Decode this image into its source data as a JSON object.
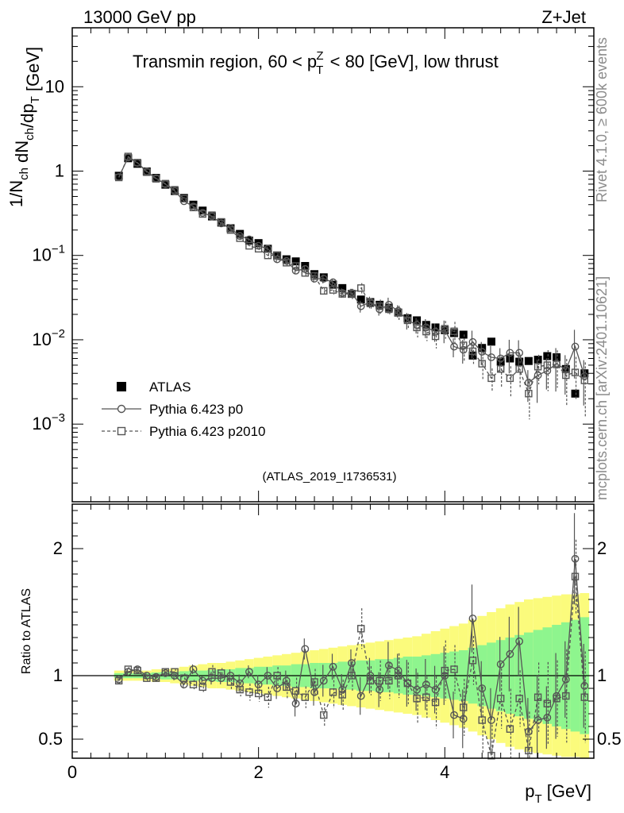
{
  "header": {
    "left": "13000 GeV pp",
    "right": "Z+Jet",
    "side_top": "Rivet 4.1.0, ≥ 600k events",
    "side_bottom": "mcplots.cern.ch [arXiv:2401.10621]",
    "reference": "(ATLAS_2019_I1736531)"
  },
  "colors": {
    "data": "#000000",
    "mc": "#555555",
    "band_inner": "#8ef58e",
    "band_outer": "#fbfb7c",
    "reference_text": "#a0a0a0",
    "side_text": "#8c8c8c"
  },
  "chart_data": [
    {
      "type": "scatter",
      "panel": "main",
      "title": "Transmin region, 60 < p_T^Z < 80 [GeV], low thrust",
      "ylabel": "1/N_ch dN_ch/dp_T [GeV]",
      "yscale": "log",
      "xlim": [
        0,
        5.6
      ],
      "ylim": [
        0.00012,
        50
      ],
      "y_ticks": [
        "10^-3",
        "10^-2",
        "10^-1",
        "1",
        "10"
      ],
      "legend_position": "lower-left",
      "x": [
        0.5,
        0.6,
        0.7,
        0.8,
        0.9,
        1.0,
        1.1,
        1.2,
        1.3,
        1.4,
        1.5,
        1.6,
        1.7,
        1.8,
        1.9,
        2.0,
        2.1,
        2.2,
        2.3,
        2.4,
        2.5,
        2.6,
        2.7,
        2.8,
        2.9,
        3.0,
        3.1,
        3.2,
        3.3,
        3.4,
        3.5,
        3.6,
        3.7,
        3.8,
        3.9,
        4.0,
        4.1,
        4.2,
        4.3,
        4.4,
        4.5,
        4.6,
        4.7,
        4.8,
        4.9,
        5.0,
        5.1,
        5.2,
        5.3,
        5.4,
        5.5
      ],
      "series": [
        {
          "name": "ATLAS",
          "marker": "filled-square",
          "values": [
            0.88,
            1.42,
            1.22,
            0.99,
            0.83,
            0.69,
            0.58,
            0.48,
            0.4,
            0.34,
            0.29,
            0.245,
            0.21,
            0.18,
            0.15,
            0.14,
            0.12,
            0.1,
            0.09,
            0.085,
            0.075,
            0.06,
            0.055,
            0.045,
            0.041,
            0.035,
            0.03,
            0.028,
            0.026,
            0.024,
            0.021,
            0.018,
            0.017,
            0.015,
            0.014,
            0.013,
            0.012,
            0.0115,
            0.0065,
            0.008,
            0.0095,
            0.0055,
            0.006,
            0.0055,
            0.0056,
            0.0058,
            0.0064,
            0.0062,
            0.0045,
            0.0023,
            0.004
          ]
        },
        {
          "name": "Pythia 6.423 p0",
          "marker": "open-circle",
          "line": "solid",
          "values": [
            0.85,
            1.45,
            1.25,
            0.99,
            0.82,
            0.7,
            0.58,
            0.44,
            0.38,
            0.32,
            0.29,
            0.24,
            0.21,
            0.17,
            0.155,
            0.13,
            0.12,
            0.09,
            0.086,
            0.066,
            0.069,
            0.053,
            0.053,
            0.048,
            0.036,
            0.036,
            0.025,
            0.028,
            0.023,
            0.026,
            0.022,
            0.017,
            0.015,
            0.014,
            0.0125,
            0.013,
            0.0083,
            0.0076,
            0.0094,
            0.0072,
            0.0062,
            0.006,
            0.007,
            0.007,
            0.0031,
            0.0038,
            0.0043,
            0.0052,
            0.0044,
            0.0083,
            0.0037
          ]
        },
        {
          "name": "Pythia 6.423 p2010",
          "marker": "open-square",
          "line": "dashed",
          "values": [
            0.84,
            1.49,
            1.26,
            0.97,
            0.81,
            0.71,
            0.6,
            0.47,
            0.37,
            0.31,
            0.3,
            0.25,
            0.2,
            0.16,
            0.13,
            0.12,
            0.1,
            0.1,
            0.082,
            0.075,
            0.062,
            0.057,
            0.038,
            0.039,
            0.035,
            0.035,
            0.041,
            0.027,
            0.025,
            0.023,
            0.021,
            0.017,
            0.014,
            0.0125,
            0.011,
            0.0135,
            0.0126,
            0.0086,
            0.0073,
            0.0052,
            0.0035,
            0.0045,
            0.0035,
            0.0045,
            0.0023,
            0.0048,
            0.005,
            0.0051,
            0.0038,
            0.0041,
            0.0033
          ]
        }
      ]
    },
    {
      "type": "scatter",
      "panel": "ratio",
      "ylabel": "Ratio to ATLAS",
      "xlabel": "p_T [GeV]",
      "xlim": [
        0,
        5.6
      ],
      "ylim": [
        0.35,
        2.35
      ],
      "x_ticks": [
        "0",
        "2",
        "4"
      ],
      "y_ticks": [
        "0.5",
        "1",
        "2"
      ],
      "reference_line": 1,
      "x": [
        0.5,
        0.6,
        0.7,
        0.8,
        0.9,
        1.0,
        1.1,
        1.2,
        1.3,
        1.4,
        1.5,
        1.6,
        1.7,
        1.8,
        1.9,
        2.0,
        2.1,
        2.2,
        2.3,
        2.4,
        2.5,
        2.6,
        2.7,
        2.8,
        2.9,
        3.0,
        3.1,
        3.2,
        3.3,
        3.4,
        3.5,
        3.6,
        3.7,
        3.8,
        3.9,
        4.0,
        4.1,
        4.2,
        4.3,
        4.4,
        4.5,
        4.6,
        4.7,
        4.8,
        4.9,
        5.0,
        5.1,
        5.2,
        5.3,
        5.4,
        5.5
      ],
      "band_inner": [
        0.02,
        0.02,
        0.02,
        0.02,
        0.025,
        0.03,
        0.03,
        0.035,
        0.04,
        0.04,
        0.045,
        0.05,
        0.05,
        0.06,
        0.06,
        0.07,
        0.07,
        0.08,
        0.08,
        0.09,
        0.09,
        0.1,
        0.1,
        0.1,
        0.11,
        0.11,
        0.12,
        0.12,
        0.13,
        0.13,
        0.14,
        0.15,
        0.15,
        0.16,
        0.17,
        0.18,
        0.19,
        0.2,
        0.22,
        0.24,
        0.26,
        0.28,
        0.3,
        0.32,
        0.34,
        0.36,
        0.38,
        0.4,
        0.42,
        0.44,
        0.46
      ],
      "band_outer": [
        0.04,
        0.04,
        0.04,
        0.04,
        0.05,
        0.05,
        0.06,
        0.07,
        0.08,
        0.09,
        0.1,
        0.1,
        0.11,
        0.12,
        0.13,
        0.14,
        0.15,
        0.16,
        0.17,
        0.18,
        0.19,
        0.2,
        0.21,
        0.22,
        0.23,
        0.24,
        0.25,
        0.26,
        0.27,
        0.28,
        0.29,
        0.3,
        0.31,
        0.33,
        0.35,
        0.37,
        0.39,
        0.41,
        0.44,
        0.47,
        0.5,
        0.53,
        0.56,
        0.58,
        0.6,
        0.61,
        0.62,
        0.63,
        0.64,
        0.64,
        0.65
      ],
      "series": [
        {
          "name": "Pythia 6.423 p0",
          "values": [
            0.97,
            1.03,
            1.05,
            1.0,
            0.99,
            1.02,
            1.0,
            0.93,
            1.05,
            0.96,
            0.98,
            0.98,
            1.0,
            0.94,
            1.03,
            0.93,
            1.0,
            0.9,
            0.96,
            0.78,
            1.21,
            0.87,
            0.96,
            1.07,
            0.89,
            1.1,
            0.84,
            1.0,
            0.89,
            1.08,
            1.04,
            0.94,
            0.89,
            0.93,
            0.89,
            1.0,
            0.69,
            0.66,
            1.45,
            0.9,
            0.65,
            1.09,
            1.17,
            1.27,
            0.56,
            0.65,
            0.67,
            0.84,
            0.97,
            1.92,
            0.92
          ]
        },
        {
          "name": "Pythia 6.423 p2010",
          "values": [
            0.96,
            1.05,
            1.04,
            0.98,
            0.98,
            1.03,
            1.03,
            0.98,
            0.93,
            0.91,
            1.03,
            1.02,
            0.95,
            0.89,
            0.87,
            0.86,
            0.83,
            1.0,
            0.91,
            0.88,
            0.83,
            0.95,
            0.69,
            0.87,
            0.85,
            1.0,
            1.37,
            0.96,
            0.96,
            0.96,
            1.0,
            0.94,
            0.82,
            0.83,
            0.79,
            1.04,
            1.05,
            0.75,
            1.12,
            0.65,
            0.37,
            0.82,
            0.58,
            0.82,
            0.41,
            0.83,
            0.78,
            0.82,
            0.84,
            1.78,
            0.83
          ]
        }
      ]
    }
  ]
}
